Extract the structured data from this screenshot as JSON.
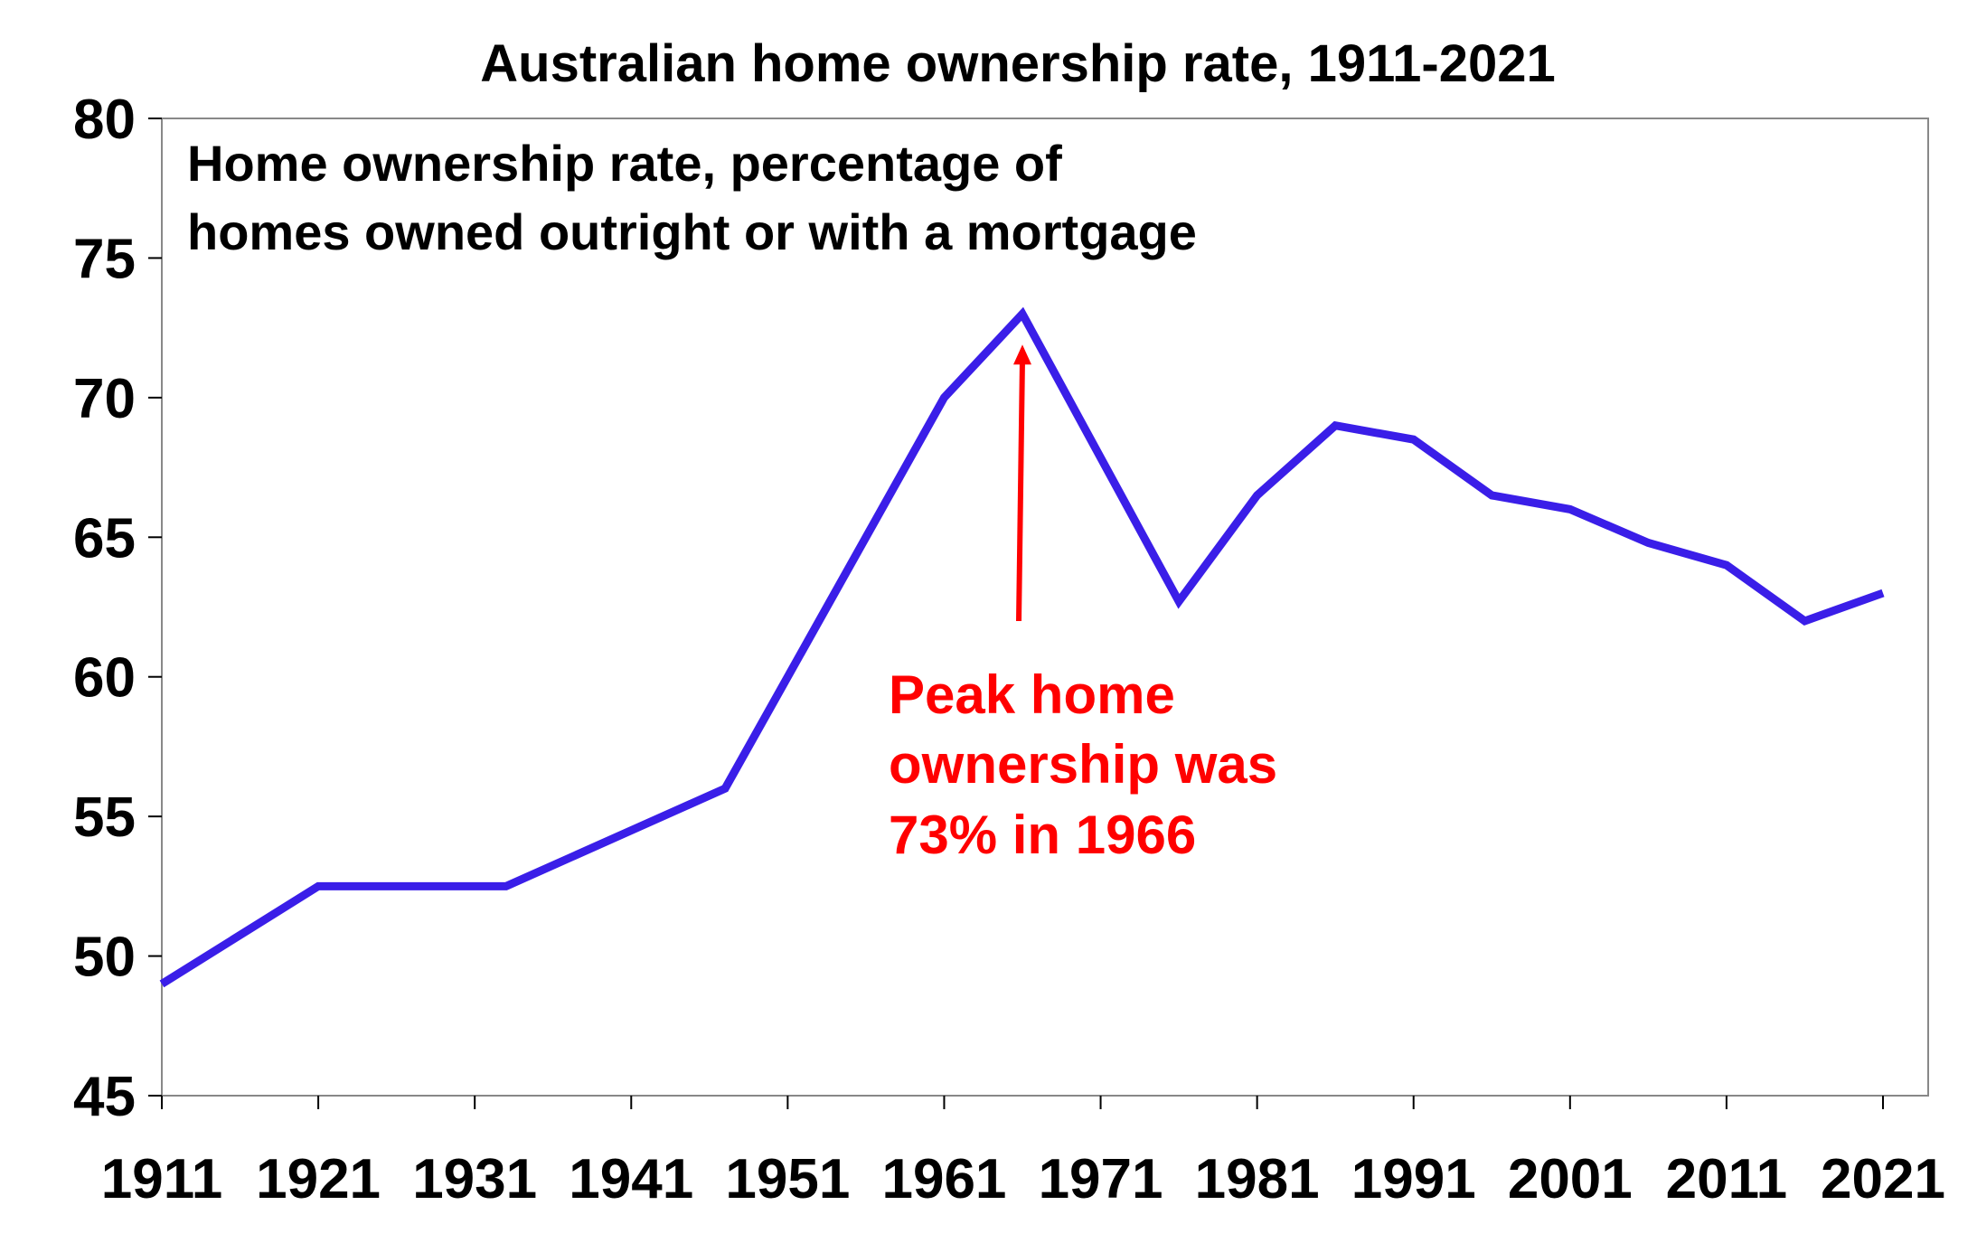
{
  "chart_data": {
    "type": "line",
    "title": "Australian home ownership rate, 1911-2021",
    "subtitle_lines": [
      "Home ownership rate, percentage of",
      "homes owned outright or with a mortgage"
    ],
    "xlabel": "",
    "ylabel": "",
    "xlim": [
      1911,
      2021
    ],
    "ylim": [
      45,
      80
    ],
    "x_ticks": [
      1911,
      1921,
      1931,
      1941,
      1951,
      1961,
      1971,
      1981,
      1991,
      2001,
      2011,
      2021
    ],
    "y_ticks": [
      45,
      50,
      55,
      60,
      65,
      70,
      75,
      80
    ],
    "grid": false,
    "series": [
      {
        "color": "#3a1ee8",
        "points": [
          {
            "x": 1911,
            "y": 49
          },
          {
            "x": 1921,
            "y": 52.5
          },
          {
            "x": 1933,
            "y": 52.5
          },
          {
            "x": 1947,
            "y": 56
          },
          {
            "x": 1961,
            "y": 70
          },
          {
            "x": 1966,
            "y": 73
          },
          {
            "x": 1976,
            "y": 62.7
          },
          {
            "x": 1981,
            "y": 66.5
          },
          {
            "x": 1986,
            "y": 69
          },
          {
            "x": 1991,
            "y": 68.5
          },
          {
            "x": 1996,
            "y": 66.5
          },
          {
            "x": 2001,
            "y": 66
          },
          {
            "x": 2006,
            "y": 64.8
          },
          {
            "x": 2011,
            "y": 64
          },
          {
            "x": 2016,
            "y": 62
          },
          {
            "x": 2021,
            "y": 63
          }
        ]
      }
    ],
    "annotation": {
      "lines": [
        "Peak home",
        "ownership was",
        "73% in 1966"
      ],
      "color": "#ff0000",
      "points_to": {
        "x": 1966,
        "y": 73
      }
    }
  }
}
